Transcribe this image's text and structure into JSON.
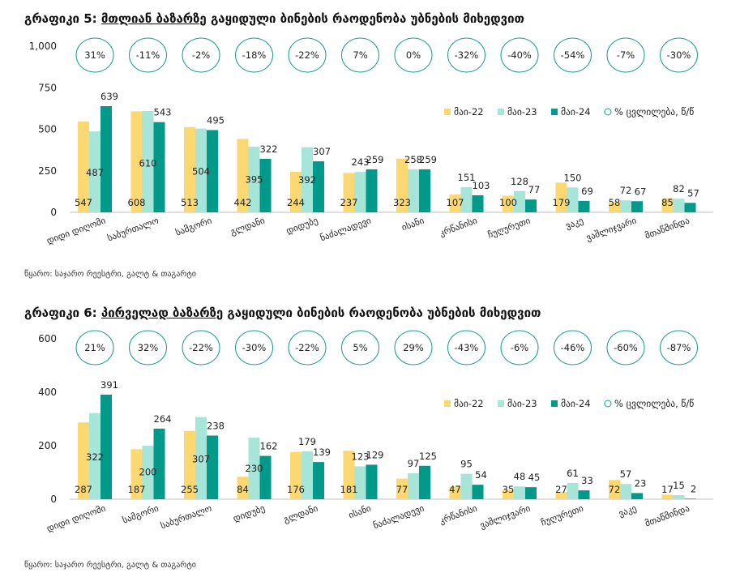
{
  "colors": {
    "may22": "#FBD872",
    "may23": "#A6E5D7",
    "may24": "#00998A",
    "circle": "#1A9E8E",
    "axis": "#BFBFBF",
    "text": "#222222"
  },
  "charts": [
    {
      "title_prefix": "გრაფიკი 5: ",
      "title_underlined": "მთლიან ბაზარზე",
      "title_rest": " გაყიდული ბინების რაოდენობა უბნების მიხედვით",
      "source": "წყარო: საჯარო რეესტრი, გალტ & თაგარტი"
    },
    {
      "title_prefix": "გრაფიკი 6: ",
      "title_underlined": "პირველად ბაზარზე",
      "title_rest": " გაყიდული ბინების რაოდენობა უბნების მიხედვით",
      "source": "წყარო: საჯარო რეესტრი, გალტ & თაგარტი"
    }
  ],
  "chart_data": [
    {
      "type": "bar",
      "title": "გრაფიკი 5: მთლიან ბაზარზე გაყიდული ბინების რაოდენობა უბნების მიხედვით",
      "categories": [
        "დიდი დიღომი",
        "საბურთალო",
        "სამგორი",
        "გლდანი",
        "დიდუბე",
        "ნაძალადევი",
        "ისანი",
        "კრწანისი",
        "ჩუღურეთი",
        "ვაკე",
        "ვაშლიჯვარი",
        "მთაწმინდა"
      ],
      "series": [
        {
          "name": "მაი-22",
          "values": [
            547,
            608,
            513,
            442,
            244,
            237,
            323,
            107,
            100,
            179,
            58,
            85
          ]
        },
        {
          "name": "მაი-23",
          "values": [
            487,
            610,
            504,
            395,
            392,
            243,
            258,
            151,
            128,
            150,
            72,
            82
          ]
        },
        {
          "name": "მაი-24",
          "values": [
            639,
            543,
            495,
            322,
            307,
            259,
            259,
            103,
            77,
            69,
            67,
            57
          ]
        }
      ],
      "yoy_change": [
        "31%",
        "-11%",
        "-2%",
        "-18%",
        "-22%",
        "7%",
        "0%",
        "-32%",
        "-40%",
        "-54%",
        "-7%",
        "-30%"
      ],
      "legend": [
        "მაი-22",
        "მაი-23",
        "მაი-24",
        "% ცვლილება, წ/წ"
      ],
      "legend_position": "right",
      "yticks": [
        "0",
        "250",
        "500",
        "750",
        "1,000"
      ],
      "ylim": [
        0,
        1000
      ],
      "grid": false
    },
    {
      "type": "bar",
      "title": "გრაფიკი 6: პირველად ბაზარზე გაყიდული ბინების რაოდენობა უბნების მიხედვით",
      "categories": [
        "დიდი დიღომი",
        "სამგორი",
        "საბურთალო",
        "დიდუბე",
        "გლდანი",
        "ისანი",
        "ნაძალადევი",
        "კრწანისი",
        "ვაშლიჯვარი",
        "ჩუღურეთი",
        "ვაკე",
        "მთაწმინდა"
      ],
      "series": [
        {
          "name": "მაი-22",
          "values": [
            287,
            187,
            255,
            84,
            176,
            181,
            77,
            47,
            35,
            27,
            72,
            17
          ]
        },
        {
          "name": "მაი-23",
          "values": [
            322,
            200,
            307,
            230,
            179,
            123,
            97,
            95,
            48,
            61,
            57,
            15
          ]
        },
        {
          "name": "მაი-24",
          "values": [
            391,
            264,
            238,
            162,
            139,
            129,
            125,
            54,
            45,
            33,
            23,
            2
          ]
        }
      ],
      "yoy_change": [
        "21%",
        "32%",
        "-22%",
        "-30%",
        "-22%",
        "5%",
        "29%",
        "-43%",
        "-6%",
        "-46%",
        "-60%",
        "-87%"
      ],
      "legend": [
        "მაი-22",
        "მაი-23",
        "მაი-24",
        "% ცვლილება, წ/წ"
      ],
      "legend_position": "right",
      "yticks": [
        "0",
        "200",
        "400",
        "600"
      ],
      "ylim": [
        0,
        600
      ],
      "grid": false
    }
  ]
}
